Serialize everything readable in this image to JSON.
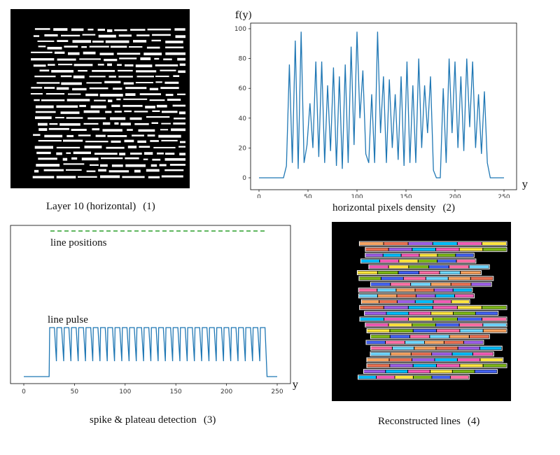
{
  "panels": [
    {
      "id": "panel-1",
      "caption": "Layer 10 (horizontal)",
      "number": "(1)",
      "background": "#000000",
      "foreground": "#ffffff"
    },
    {
      "id": "panel-2",
      "caption": "horizontal pixels density",
      "number": "(2)",
      "ylabel": "f(y)",
      "xlabel": "y",
      "line_color": "#1f77b4",
      "chart_data": {
        "type": "line",
        "xlim": [
          0,
          250
        ],
        "ylim": [
          0,
          100
        ],
        "x_ticks": [
          0,
          50,
          100,
          150,
          200,
          250
        ],
        "y_ticks": [
          0,
          20,
          40,
          60,
          80,
          100
        ],
        "x": [
          0,
          25,
          28,
          31,
          34,
          37,
          40,
          43,
          46,
          49,
          52,
          55,
          58,
          61,
          64,
          67,
          70,
          73,
          76,
          79,
          82,
          85,
          88,
          91,
          94,
          97,
          100,
          103,
          106,
          109,
          112,
          115,
          118,
          121,
          124,
          127,
          130,
          133,
          136,
          139,
          142,
          145,
          148,
          151,
          154,
          157,
          160,
          163,
          166,
          169,
          172,
          175,
          178,
          181,
          185,
          188,
          191,
          194,
          197,
          200,
          203,
          206,
          209,
          212,
          215,
          218,
          221,
          224,
          227,
          230,
          233,
          236,
          240,
          250
        ],
        "y": [
          0,
          0,
          8,
          76,
          10,
          92,
          6,
          98,
          10,
          22,
          50,
          20,
          78,
          14,
          78,
          10,
          62,
          18,
          74,
          8,
          68,
          6,
          76,
          10,
          88,
          22,
          98,
          40,
          72,
          16,
          10,
          56,
          10,
          98,
          30,
          68,
          10,
          66,
          20,
          56,
          12,
          68,
          8,
          78,
          10,
          62,
          10,
          80,
          20,
          62,
          30,
          68,
          5,
          0,
          0,
          60,
          10,
          80,
          30,
          78,
          20,
          68,
          18,
          80,
          34,
          78,
          20,
          56,
          16,
          58,
          10,
          0,
          0,
          0
        ]
      }
    },
    {
      "id": "panel-3",
      "caption": "spike & plateau detection",
      "number": "(3)",
      "xlabel": "y",
      "label_positions": "line positions",
      "label_pulse": "line pulse",
      "line_color": "#1f77b4",
      "dash_color": "#2ca02c",
      "chart_data": {
        "type": "line",
        "xlim": [
          0,
          250
        ],
        "x_ticks": [
          0,
          50,
          100,
          150,
          200,
          250
        ],
        "pulse_start": 25,
        "pulse_end": 240,
        "pulse_count": 30,
        "pulse_high": 1,
        "pulse_low": 0
      }
    },
    {
      "id": "panel-4",
      "caption": "Reconstructed lines",
      "number": "(4)",
      "background": "#000000",
      "box_color": "#ffffff",
      "stripe_colors": [
        "#f4a261",
        "#e76f51",
        "#9b5de5",
        "#00bbf9",
        "#f15bb5",
        "#fee440",
        "#7cb518",
        "#4361ee",
        "#ff70a6",
        "#70d6ff"
      ]
    }
  ]
}
